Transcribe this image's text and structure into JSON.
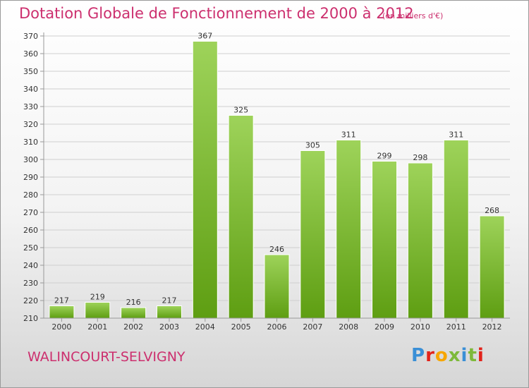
{
  "title": "Dotation Globale de Fonctionnement de 2000 à 2012",
  "subtitle": "(en milliers d'€)",
  "place": "WALINCOURT-SELVIGNY",
  "logo": {
    "text": "Proxiti",
    "colors": [
      "#3a8fd6",
      "#e2231a",
      "#f7a600",
      "#7db93a",
      "#3a8fd6",
      "#7db93a",
      "#e2231a"
    ]
  },
  "chart_data": {
    "type": "bar",
    "title": "Dotation Globale de Fonctionnement de 2000 à 2012",
    "subtitle": "(en milliers d'€)",
    "categories": [
      "2000",
      "2001",
      "2002",
      "2003",
      "2004",
      "2005",
      "2006",
      "2007",
      "2008",
      "2009",
      "2010",
      "2011",
      "2012"
    ],
    "values": [
      217,
      219,
      216,
      217,
      367,
      325,
      246,
      305,
      311,
      299,
      298,
      311,
      268
    ],
    "ylim": [
      210,
      370
    ],
    "yticks": [
      210,
      220,
      230,
      240,
      250,
      260,
      270,
      280,
      290,
      300,
      310,
      320,
      330,
      340,
      350,
      360,
      370
    ],
    "grid": true,
    "colors": {
      "bar_light": "#9ed35a",
      "bar_dark": "#5e9e12",
      "accent": "#cc2f6e"
    }
  }
}
